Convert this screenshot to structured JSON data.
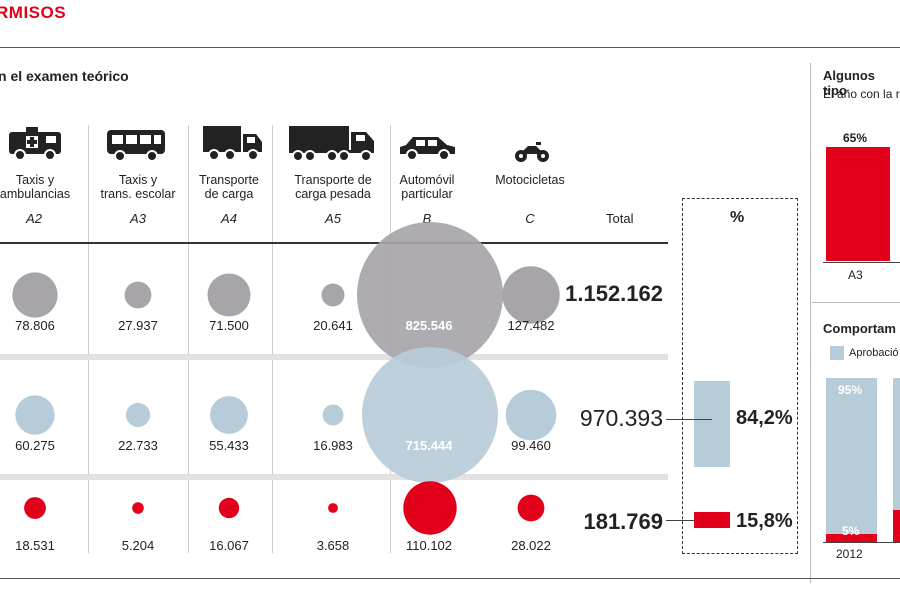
{
  "header": {
    "title": "RMISOS"
  },
  "main": {
    "subtitle": "n el examen teórico",
    "columns": [
      {
        "icon": "ambulance-icon",
        "name_lines": [
          "Taxis y",
          "ambulancias"
        ],
        "code": "A2"
      },
      {
        "icon": "bus-icon",
        "name_lines": [
          "Taxis y",
          "trans. escolar"
        ],
        "code": "A3"
      },
      {
        "icon": "truck-icon",
        "name_lines": [
          "Transporte",
          "de carga"
        ],
        "code": "A4"
      },
      {
        "icon": "heavy-truck-icon",
        "name_lines": [
          "Transporte de",
          "carga pesada"
        ],
        "code": "A5"
      },
      {
        "icon": "car-icon",
        "name_lines": [
          "Automóvil",
          "particular"
        ],
        "code": "B"
      },
      {
        "icon": "motorcycle-icon",
        "name_lines": [
          "Motocicletas"
        ],
        "code": "C"
      }
    ],
    "total_label": "Total",
    "percent_label": "%",
    "rows": [
      {
        "values": [
          "78.806",
          "27.937",
          "71.500",
          "20.641",
          "825.546",
          "127.482"
        ],
        "total": "1.152.162",
        "percent": ""
      },
      {
        "values": [
          "60.275",
          "22.733",
          "55.433",
          "16.983",
          "715.444",
          "99.460"
        ],
        "total": "970.393",
        "percent": "84,2%"
      },
      {
        "values": [
          "18.531",
          "5.204",
          "16.067",
          "3.658",
          "110.102",
          "28.022"
        ],
        "total": "181.769",
        "percent": "15,8%"
      }
    ]
  },
  "right_panel": {
    "title": "Algunos tipo",
    "subtitle": "El año con la r",
    "bar_value_label": "65%",
    "bar_category": "A3",
    "section_title": "Comportam",
    "legend_label": "Aprobació",
    "bar2_top_label": "95%",
    "bar2_bottom_label": "5%",
    "year_label": "2012"
  },
  "colors": {
    "accent_red": "#e3001b",
    "gray_circle": "#a7a5aa",
    "blue_circle": "#b7ccd9",
    "red_circle": "#e3001b"
  },
  "chart_data": {
    "type": "bubble-table",
    "categories": [
      "A2",
      "A3",
      "A4",
      "A5",
      "B",
      "C"
    ],
    "series": [
      {
        "values": [
          78806,
          27937,
          71500,
          20641,
          825546,
          127482
        ],
        "total": 1152162
      },
      {
        "values": [
          60275,
          22733,
          55433,
          16983,
          715444,
          99460
        ],
        "total": 970393,
        "percent": 84.2
      },
      {
        "values": [
          18531,
          5204,
          16067,
          3658,
          110102,
          28022
        ],
        "total": 181769,
        "percent": 15.8
      }
    ]
  }
}
